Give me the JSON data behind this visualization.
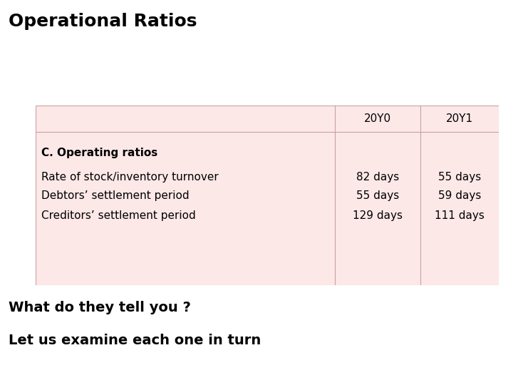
{
  "title": "Operational Ratios",
  "background_color": "#ffffff",
  "table_bg": "#fde8e8",
  "table_border": "#c8a0a0",
  "col_headers": [
    "",
    "20Y0",
    "20Y1"
  ],
  "section_header": "C. Operating ratios",
  "rows": [
    [
      "Rate of stock/inventory turnover",
      "82 days",
      "55 days"
    ],
    [
      "Debtors’ settlement period",
      "55 days",
      "59 days"
    ],
    [
      "Creditors’ settlement period",
      "129 days",
      "111 days"
    ]
  ],
  "footer1": "What do they tell you ?",
  "footer2": "Let us examine each one in turn",
  "title_fontsize": 18,
  "header_fontsize": 11,
  "section_fontsize": 11,
  "row_fontsize": 11,
  "footer_fontsize": 14
}
